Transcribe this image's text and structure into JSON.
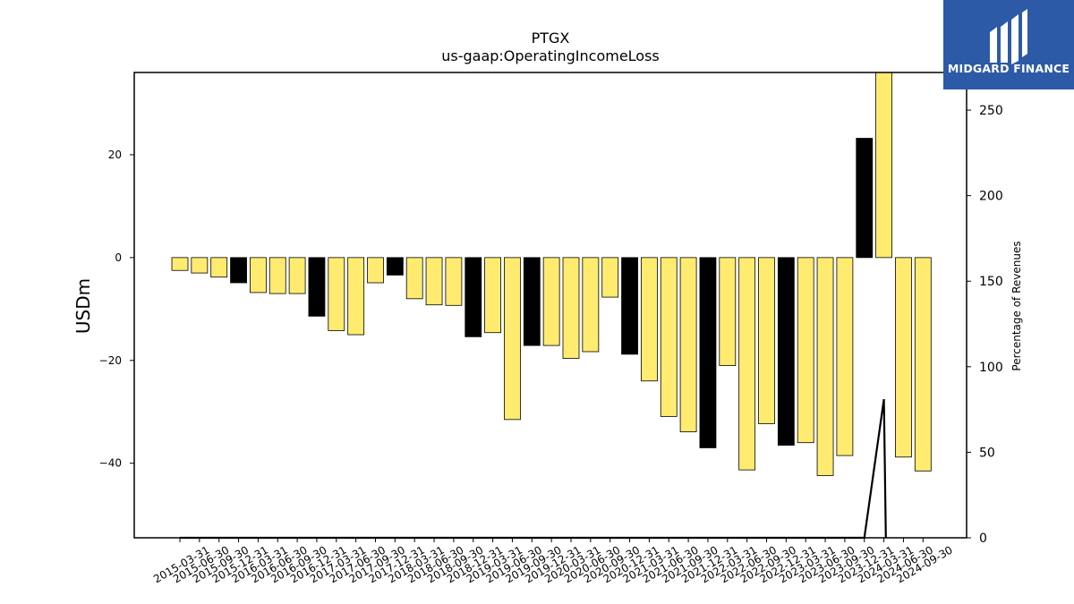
{
  "chart_data": {
    "type": "bar",
    "title": "PTGX",
    "subtitle": "us-gaap:OperatingIncomeLoss",
    "ylabel": "USDm",
    "y2label": "Percentage of Revenues",
    "ylim": [
      -54.5,
      36
    ],
    "y2lim": [
      0,
      272
    ],
    "yticks": [
      -40,
      -20,
      0,
      20
    ],
    "y2ticks": [
      0,
      50,
      100,
      150,
      200,
      250
    ],
    "categories": [
      "2015-03-31",
      "2015-06-30",
      "2015-09-30",
      "2015-12-31",
      "2016-03-31",
      "2016-06-30",
      "2016-09-30",
      "2016-12-31",
      "2017-03-31",
      "2017-06-30",
      "2017-09-30",
      "2017-12-31",
      "2018-03-31",
      "2018-06-30",
      "2018-09-30",
      "2018-12-31",
      "2019-03-31",
      "2019-06-30",
      "2019-09-30",
      "2019-12-31",
      "2020-03-31",
      "2020-06-30",
      "2020-09-30",
      "2020-12-31",
      "2021-03-31",
      "2021-06-30",
      "2021-09-30",
      "2021-12-31",
      "2022-03-31",
      "2022-06-30",
      "2022-09-30",
      "2022-12-31",
      "2023-03-31",
      "2023-06-30",
      "2023-09-30",
      "2023-12-31",
      "2024-03-31",
      "2024-06-30",
      "2024-09-30"
    ],
    "values": [
      -2.5,
      -3.0,
      -3.8,
      -4.9,
      -6.8,
      -7.0,
      -7.0,
      -11.4,
      -14.2,
      -15.0,
      -4.9,
      -3.4,
      -8.0,
      -9.2,
      -9.3,
      -15.4,
      -14.6,
      -31.5,
      -17.1,
      -17.1,
      -19.6,
      -18.3,
      -7.7,
      -18.8,
      -24.0,
      -30.9,
      -33.9,
      -37.0,
      -21.0,
      -41.3,
      -32.3,
      -36.5,
      -36.0,
      -42.4,
      -38.5,
      23.2,
      36.0,
      -38.8,
      -41.5
    ],
    "bar_colors": [
      "#ffeb70",
      "#ffeb70",
      "#ffeb70",
      "#000000",
      "#ffeb70",
      "#ffeb70",
      "#ffeb70",
      "#000000",
      "#ffeb70",
      "#ffeb70",
      "#ffeb70",
      "#000000",
      "#ffeb70",
      "#ffeb70",
      "#ffeb70",
      "#000000",
      "#ffeb70",
      "#ffeb70",
      "#000000",
      "#ffeb70",
      "#ffeb70",
      "#ffeb70",
      "#ffeb70",
      "#000000",
      "#ffeb70",
      "#ffeb70",
      "#ffeb70",
      "#000000",
      "#ffeb70",
      "#ffeb70",
      "#ffeb70",
      "#000000",
      "#ffeb70",
      "#ffeb70",
      "#ffeb70",
      "#000000",
      "#ffeb70",
      "#ffeb70",
      "#ffeb70"
    ],
    "line_series": {
      "axis": "secondary",
      "points": [
        [
          0,
          0
        ],
        [
          8,
          0
        ],
        [
          9,
          0
        ],
        [
          16,
          0
        ],
        [
          17,
          0
        ],
        [
          19,
          0
        ],
        [
          20,
          0
        ],
        [
          21,
          0
        ],
        [
          30,
          0
        ],
        [
          35,
          0
        ],
        [
          36,
          81
        ],
        [
          36.1,
          0
        ]
      ]
    },
    "grid": false,
    "legend": "none"
  },
  "logo": {
    "text": "MIDGARD FINANCE",
    "background": "#2d5aa7"
  }
}
